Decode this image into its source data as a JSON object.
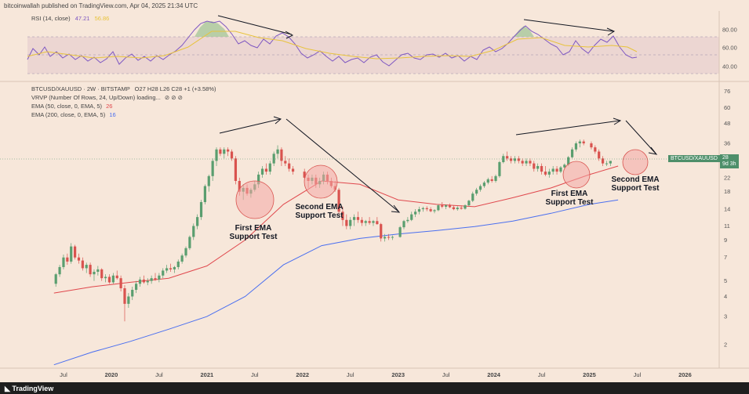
{
  "header": {
    "publisher": "bitcoinwallah published on TradingView.com, Apr 04, 2025 21:34 UTC"
  },
  "rsi": {
    "label": "RSI (14, close)",
    "value": "47.21",
    "value2": "56.86",
    "levels": [
      "80.00",
      "60.00",
      "40.00"
    ]
  },
  "legend": {
    "symbol": "BTCUSD/XAUUSD · 2W · BITSTAMP",
    "ohlc": "O27  H28  L26  C28  +1 (+3.58%)",
    "vrvp": "VRVP (Number Of Rows, 24, Up/Down) loading...",
    "ema50": "EMA (50, close, 0, EMA, 5)",
    "ema50_value": "26",
    "ema200": "EMA (200, close, 0, EMA, 5)",
    "ema200_value": "16"
  },
  "annotations": [
    {
      "text": "First EMA\nSupport Test"
    },
    {
      "text": "Second EMA\nSupport Test"
    },
    {
      "text": "First EMA\nSupport Test"
    },
    {
      "text": "Second EMA\nSupport Test"
    }
  ],
  "price_label": {
    "symbol": "BTCUSD/XAUUSD",
    "value": "28",
    "countdown": "9d 3h"
  },
  "footer": {
    "brand": "TradingView"
  },
  "colors": {
    "up": "#5a9e6f",
    "down": "#d9534f",
    "ema50": "#e0474c",
    "ema200": "#4a6ff0",
    "rsi": "#7e57c2",
    "rsi_ma": "#e8c33c",
    "background": "#f7e7da"
  },
  "chart_data": {
    "type": "candlestick",
    "y_scale": "log",
    "y_ticks": [
      76,
      60,
      48,
      36,
      28,
      22,
      18,
      14,
      11,
      9,
      7,
      5,
      4,
      3,
      2
    ],
    "x_ticks": [
      "Jul",
      "2020",
      "Jul",
      "2021",
      "Jul",
      "2022",
      "Jul",
      "2023",
      "Jul",
      "2024",
      "Jul",
      "2025",
      "Jul",
      "2026"
    ],
    "ylim": [
      1.6,
      80
    ],
    "series": [
      {
        "name": "EMA (50, close, 0, EMA, 5)",
        "points": [
          [
            2019.4,
            4.2
          ],
          [
            2019.8,
            4.6
          ],
          [
            2020.2,
            4.9
          ],
          [
            2020.6,
            5.2
          ],
          [
            2021.0,
            6.2
          ],
          [
            2021.4,
            9.0
          ],
          [
            2021.8,
            15
          ],
          [
            2022.2,
            21
          ],
          [
            2022.6,
            20
          ],
          [
            2023.0,
            16
          ],
          [
            2023.4,
            15
          ],
          [
            2023.8,
            14.5
          ],
          [
            2024.2,
            16.5
          ],
          [
            2024.6,
            19
          ],
          [
            2025.0,
            23
          ],
          [
            2025.3,
            26
          ]
        ]
      },
      {
        "name": "EMA (200, close, 0, EMA, 5)",
        "points": [
          [
            2019.4,
            1.5
          ],
          [
            2019.8,
            1.8
          ],
          [
            2020.2,
            2.1
          ],
          [
            2020.6,
            2.5
          ],
          [
            2021.0,
            3.0
          ],
          [
            2021.4,
            4.0
          ],
          [
            2021.8,
            6.3
          ],
          [
            2022.2,
            8.3
          ],
          [
            2022.6,
            9.2
          ],
          [
            2023.0,
            9.8
          ],
          [
            2023.4,
            10.3
          ],
          [
            2023.8,
            10.9
          ],
          [
            2024.2,
            11.8
          ],
          [
            2024.6,
            13.2
          ],
          [
            2025.0,
            15.0
          ],
          [
            2025.3,
            16
          ]
        ]
      }
    ],
    "candles": [
      [
        2019.42,
        4.8,
        5.6,
        4.6,
        5.5
      ],
      [
        2019.46,
        5.5,
        6.3,
        5.3,
        6.1
      ],
      [
        2019.5,
        6.1,
        7.3,
        5.9,
        7.0
      ],
      [
        2019.54,
        7.0,
        7.4,
        6.3,
        6.6
      ],
      [
        2019.58,
        6.6,
        8.6,
        6.4,
        8.2
      ],
      [
        2019.62,
        8.2,
        8.4,
        6.8,
        7.0
      ],
      [
        2019.66,
        7.0,
        7.4,
        6.4,
        6.7
      ],
      [
        2019.7,
        6.7,
        7.0,
        5.8,
        6.0
      ],
      [
        2019.74,
        6.0,
        6.5,
        5.6,
        6.3
      ],
      [
        2019.78,
        6.3,
        6.5,
        5.3,
        5.5
      ],
      [
        2019.82,
        5.5,
        5.9,
        5.0,
        5.7
      ],
      [
        2019.86,
        5.7,
        6.2,
        5.4,
        5.9
      ],
      [
        2019.9,
        5.9,
        6.0,
        5.0,
        5.2
      ],
      [
        2019.94,
        5.2,
        5.5,
        4.9,
        5.3
      ],
      [
        2019.98,
        5.3,
        5.5,
        4.8,
        4.9
      ],
      [
        2020.02,
        4.9,
        5.6,
        4.8,
        5.4
      ],
      [
        2020.06,
        5.4,
        5.8,
        5.1,
        5.2
      ],
      [
        2020.1,
        5.2,
        5.4,
        4.3,
        4.5
      ],
      [
        2020.14,
        4.5,
        4.7,
        2.8,
        3.6
      ],
      [
        2020.18,
        3.6,
        4.2,
        3.4,
        4.0
      ],
      [
        2020.22,
        4.0,
        4.6,
        3.8,
        4.4
      ],
      [
        2020.26,
        4.4,
        5.0,
        4.2,
        4.8
      ],
      [
        2020.3,
        4.8,
        5.3,
        4.6,
        5.1
      ],
      [
        2020.34,
        5.1,
        5.4,
        4.8,
        4.9
      ],
      [
        2020.38,
        4.9,
        5.2,
        4.7,
        5.0
      ],
      [
        2020.42,
        5.0,
        5.4,
        4.8,
        5.2
      ],
      [
        2020.46,
        5.2,
        5.6,
        5.0,
        5.1
      ],
      [
        2020.5,
        5.1,
        5.6,
        4.9,
        5.4
      ],
      [
        2020.54,
        5.4,
        6.0,
        5.2,
        5.8
      ],
      [
        2020.58,
        5.8,
        6.3,
        5.6,
        6.0
      ],
      [
        2020.62,
        6.0,
        6.4,
        5.7,
        5.9
      ],
      [
        2020.66,
        5.9,
        6.2,
        5.6,
        6.1
      ],
      [
        2020.7,
        6.1,
        6.8,
        5.9,
        6.6
      ],
      [
        2020.74,
        6.6,
        7.4,
        6.4,
        7.2
      ],
      [
        2020.78,
        7.2,
        8.2,
        7.0,
        8.0
      ],
      [
        2020.82,
        8.0,
        9.6,
        7.8,
        9.4
      ],
      [
        2020.86,
        9.4,
        11.4,
        9.0,
        11.0
      ],
      [
        2020.9,
        11.0,
        13.0,
        10.5,
        12.5
      ],
      [
        2020.94,
        12.5,
        16,
        12,
        15.5
      ],
      [
        2020.98,
        15.5,
        20,
        15,
        19.5
      ],
      [
        2021.02,
        19.5,
        23,
        18,
        22.5
      ],
      [
        2021.06,
        22.5,
        29,
        21,
        28
      ],
      [
        2021.1,
        28,
        34,
        26,
        33
      ],
      [
        2021.14,
        33,
        34,
        30,
        31
      ],
      [
        2021.18,
        31,
        34,
        29,
        33
      ],
      [
        2021.22,
        33,
        34,
        30,
        32
      ],
      [
        2021.26,
        32,
        33,
        28,
        29
      ],
      [
        2021.3,
        29,
        30,
        20,
        21
      ],
      [
        2021.34,
        21,
        22,
        17,
        18
      ],
      [
        2021.38,
        18,
        20,
        16,
        19
      ],
      [
        2021.42,
        19,
        20,
        17,
        17.5
      ],
      [
        2021.46,
        17.5,
        19,
        16.5,
        18.5
      ],
      [
        2021.5,
        18.5,
        21,
        18,
        20
      ],
      [
        2021.54,
        20,
        24,
        19,
        23
      ],
      [
        2021.58,
        23,
        26,
        22,
        25
      ],
      [
        2021.62,
        25,
        27,
        23,
        24
      ],
      [
        2021.66,
        24,
        28,
        23,
        27
      ],
      [
        2021.7,
        27,
        32,
        26,
        31
      ],
      [
        2021.74,
        31,
        35,
        29,
        33
      ],
      [
        2021.78,
        33,
        34,
        26,
        28
      ],
      [
        2021.82,
        28,
        30,
        26,
        27
      ],
      [
        2021.86,
        27,
        29,
        24,
        25
      ],
      [
        2021.9,
        25,
        26,
        23,
        24
      ],
      [
        2022.02,
        24,
        25,
        21,
        22
      ],
      [
        2022.06,
        22,
        23,
        19,
        21
      ],
      [
        2022.1,
        21,
        23,
        20,
        22
      ],
      [
        2022.14,
        22,
        23,
        19,
        20
      ],
      [
        2022.18,
        20,
        22,
        19,
        21
      ],
      [
        2022.22,
        21,
        24,
        20,
        23
      ],
      [
        2022.26,
        23,
        24,
        20,
        21
      ],
      [
        2022.3,
        21,
        22,
        19,
        19.5
      ],
      [
        2022.34,
        19.5,
        21,
        18,
        18.5
      ],
      [
        2022.38,
        18.5,
        19,
        13,
        13.5
      ],
      [
        2022.42,
        13.5,
        14.5,
        11,
        12
      ],
      [
        2022.46,
        12,
        13,
        10.5,
        11
      ],
      [
        2022.5,
        11,
        12.5,
        10.5,
        12
      ],
      [
        2022.54,
        12,
        13,
        11,
        12.5
      ],
      [
        2022.58,
        12.5,
        13.5,
        11.5,
        12
      ],
      [
        2022.62,
        12,
        12.5,
        11,
        11.5
      ],
      [
        2022.66,
        11.5,
        12,
        11,
        11.8
      ],
      [
        2022.7,
        11.8,
        12.5,
        11.2,
        11.5
      ],
      [
        2022.74,
        11.5,
        12,
        11,
        11.8
      ],
      [
        2022.78,
        11.8,
        12.5,
        11.2,
        11.3
      ],
      [
        2022.82,
        11.3,
        11.5,
        8.8,
        9.2
      ],
      [
        2022.86,
        9.2,
        9.8,
        8.8,
        9.4
      ],
      [
        2022.9,
        9.4,
        9.8,
        9.0,
        9.3
      ],
      [
        2022.94,
        9.3,
        9.6,
        9.0,
        9.4
      ],
      [
        2023.02,
        9.4,
        11,
        9.3,
        10.8
      ],
      [
        2023.06,
        10.8,
        12,
        10.5,
        11.8
      ],
      [
        2023.1,
        11.8,
        12.5,
        11.5,
        12
      ],
      [
        2023.14,
        12,
        13.5,
        11.8,
        13
      ],
      [
        2023.18,
        13,
        14,
        12.5,
        13.5
      ],
      [
        2023.22,
        13.5,
        14.5,
        13,
        14
      ],
      [
        2023.26,
        14,
        14.5,
        13.5,
        14.2
      ],
      [
        2023.3,
        14.2,
        14.6,
        13.6,
        14
      ],
      [
        2023.34,
        14,
        14.4,
        13.4,
        13.6
      ],
      [
        2023.38,
        13.6,
        14,
        13.2,
        13.8
      ],
      [
        2023.42,
        13.8,
        15,
        13.6,
        14.8
      ],
      [
        2023.46,
        14.8,
        15.5,
        14.2,
        14.5
      ],
      [
        2023.5,
        14.5,
        15,
        14,
        14.8
      ],
      [
        2023.54,
        14.8,
        15.2,
        14.2,
        14.4
      ],
      [
        2023.58,
        14.4,
        14.8,
        13.8,
        14
      ],
      [
        2023.62,
        14,
        14.6,
        13.7,
        14.3
      ],
      [
        2023.66,
        14.3,
        14.8,
        13.9,
        14.1
      ],
      [
        2023.7,
        14.1,
        15,
        13.9,
        14.8
      ],
      [
        2023.74,
        14.8,
        16,
        14.6,
        15.8
      ],
      [
        2023.78,
        15.8,
        18,
        15.5,
        17.5
      ],
      [
        2023.82,
        17.5,
        19,
        17,
        18.5
      ],
      [
        2023.86,
        18.5,
        20,
        18,
        19.5
      ],
      [
        2023.9,
        19.5,
        21,
        19,
        20.5
      ],
      [
        2023.94,
        20.5,
        22,
        20,
        21.5
      ],
      [
        2023.98,
        21.5,
        22.5,
        20.5,
        21
      ],
      [
        2024.02,
        21,
        23,
        20.5,
        22.5
      ],
      [
        2024.06,
        22.5,
        28,
        22,
        27.5
      ],
      [
        2024.1,
        27.5,
        31,
        27,
        30
      ],
      [
        2024.14,
        30,
        32,
        28,
        29
      ],
      [
        2024.18,
        29,
        30,
        27,
        28
      ],
      [
        2024.22,
        28,
        30,
        27,
        29
      ],
      [
        2024.26,
        29,
        30,
        27,
        28
      ],
      [
        2024.3,
        28,
        29,
        26,
        27
      ],
      [
        2024.34,
        27,
        29,
        26,
        28
      ],
      [
        2024.38,
        28,
        29,
        26,
        27
      ],
      [
        2024.42,
        27,
        28,
        24,
        25
      ],
      [
        2024.46,
        25,
        27,
        24,
        26
      ],
      [
        2024.5,
        26,
        27,
        23,
        24
      ],
      [
        2024.54,
        24,
        26,
        22.5,
        23
      ],
      [
        2024.58,
        23,
        25,
        22,
        24
      ],
      [
        2024.62,
        24,
        26,
        23,
        25
      ],
      [
        2024.66,
        25,
        26,
        23,
        24
      ],
      [
        2024.7,
        24,
        26,
        23.5,
        25.5
      ],
      [
        2024.74,
        25.5,
        27,
        25,
        26.5
      ],
      [
        2024.78,
        26.5,
        30,
        26,
        29.5
      ],
      [
        2024.82,
        29.5,
        34,
        29,
        33
      ],
      [
        2024.86,
        33,
        37,
        32,
        36
      ],
      [
        2024.9,
        36,
        38,
        34,
        37
      ],
      [
        2024.94,
        37,
        38,
        35,
        36
      ],
      [
        2025.02,
        36,
        37,
        33,
        34
      ],
      [
        2025.06,
        34,
        35,
        31,
        32
      ],
      [
        2025.1,
        32,
        33,
        28,
        29
      ],
      [
        2025.14,
        29,
        30,
        26,
        27
      ],
      [
        2025.18,
        27,
        28,
        26,
        27
      ],
      [
        2025.22,
        27,
        28,
        26,
        28
      ]
    ]
  }
}
